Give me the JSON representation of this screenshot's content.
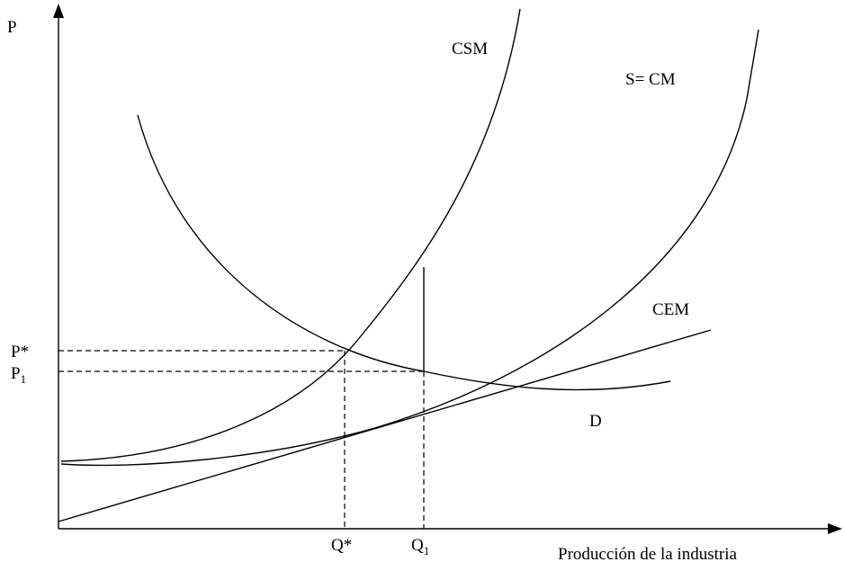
{
  "axes": {
    "y_label": "P",
    "x_label": "Producción de la industria"
  },
  "curves": {
    "csm": "CSM",
    "cm": "S= CM",
    "cem": "CEM",
    "d": "D"
  },
  "prices": {
    "p_star": "P*",
    "p1": {
      "main": "P",
      "sub": "1"
    }
  },
  "quantities": {
    "q_star": "Q*",
    "q1": {
      "main": "Q",
      "sub": "1"
    }
  }
}
